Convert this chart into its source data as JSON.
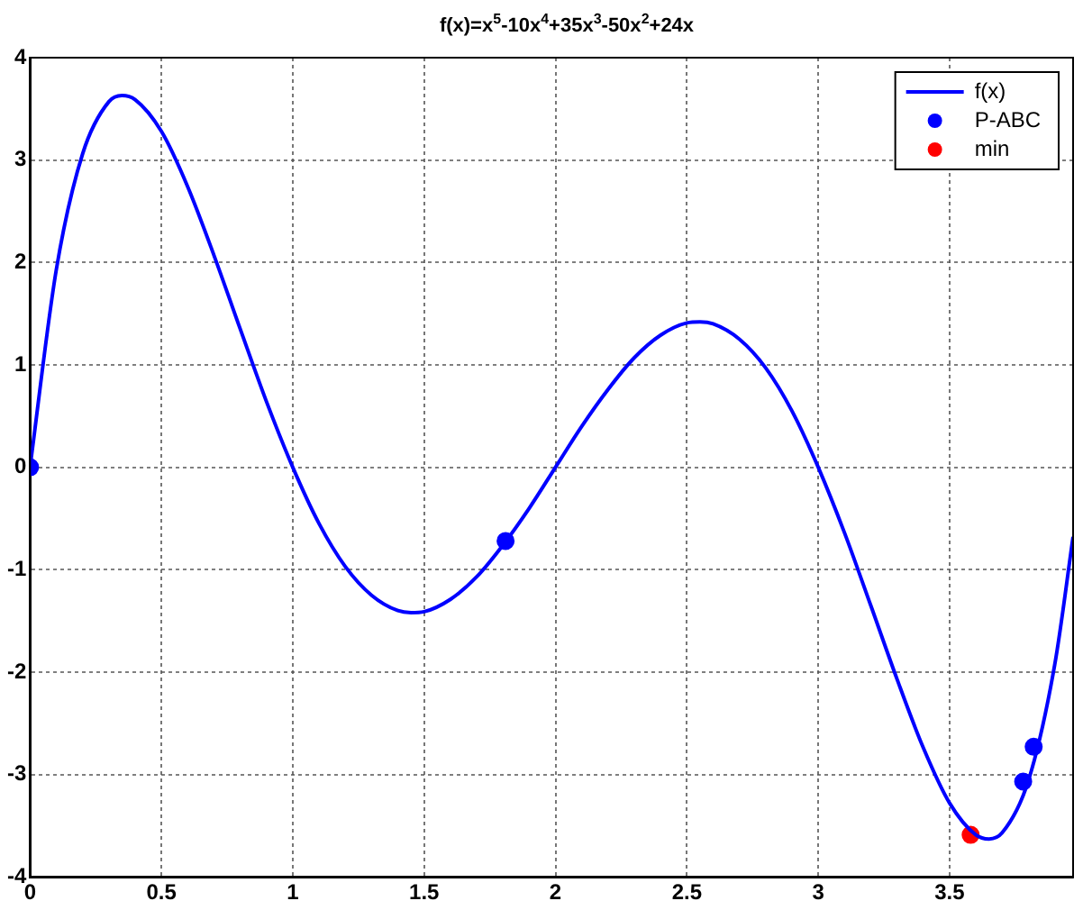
{
  "chart_data": {
    "type": "line",
    "title": "f(x)=x$^{5}$-10x$^{4}$+35x$^{3}$-50x$^{2}$+24x",
    "xlim": [
      0,
      3.97
    ],
    "xticks": [
      0,
      0.5,
      1,
      1.5,
      2,
      2.5,
      3,
      3.5
    ],
    "ylim": [
      -4,
      4
    ],
    "yticks": [
      -4,
      -3,
      -2,
      -1,
      0,
      1,
      2,
      3,
      4
    ],
    "grid": true,
    "legend": "top right",
    "series": [
      {
        "name": "f(x)",
        "color": "#0000ff",
        "marker": "none",
        "line_style": "solid",
        "x": [
          0,
          0.1,
          0.2,
          0.3,
          0.35,
          0.4,
          0.5,
          0.6,
          0.7,
          0.8,
          0.9,
          1,
          1.1,
          1.2,
          1.3,
          1.4,
          1.45,
          1.5,
          1.6,
          1.7,
          1.8,
          1.9,
          2,
          2.1,
          2.2,
          2.3,
          2.4,
          2.5,
          2.55,
          2.6,
          2.7,
          2.8,
          2.9,
          3,
          3.1,
          3.2,
          3.3,
          3.4,
          3.5,
          3.6,
          3.65,
          3.7,
          3.8,
          3.9,
          3.97
        ],
        "values": [
          0,
          1.93,
          3.06,
          3.57,
          3.63,
          3.59,
          3.28,
          2.74,
          2.07,
          1.35,
          0.64,
          0,
          -0.55,
          -0.97,
          -1.25,
          -1.4,
          -1.42,
          -1.41,
          -1.29,
          -1.07,
          -0.76,
          -0.4,
          0,
          0.4,
          0.76,
          1.07,
          1.29,
          1.41,
          1.42,
          1.4,
          1.25,
          0.97,
          0.55,
          0,
          -0.64,
          -1.35,
          -2.07,
          -2.74,
          -3.28,
          -3.59,
          -3.63,
          -3.57,
          -3.06,
          -1.93,
          -0.68
        ]
      },
      {
        "name": "P-ABC",
        "type": "scatter",
        "color": "#0000ff",
        "marker": "circle",
        "x": [
          0,
          1.81,
          3.78,
          3.82
        ],
        "values": [
          0,
          -0.72,
          -3.07,
          -2.73
        ]
      },
      {
        "name": "min",
        "type": "scatter",
        "color": "#ff0000",
        "marker": "circle",
        "x": [
          3.58
        ],
        "values": [
          -3.59
        ]
      }
    ]
  }
}
